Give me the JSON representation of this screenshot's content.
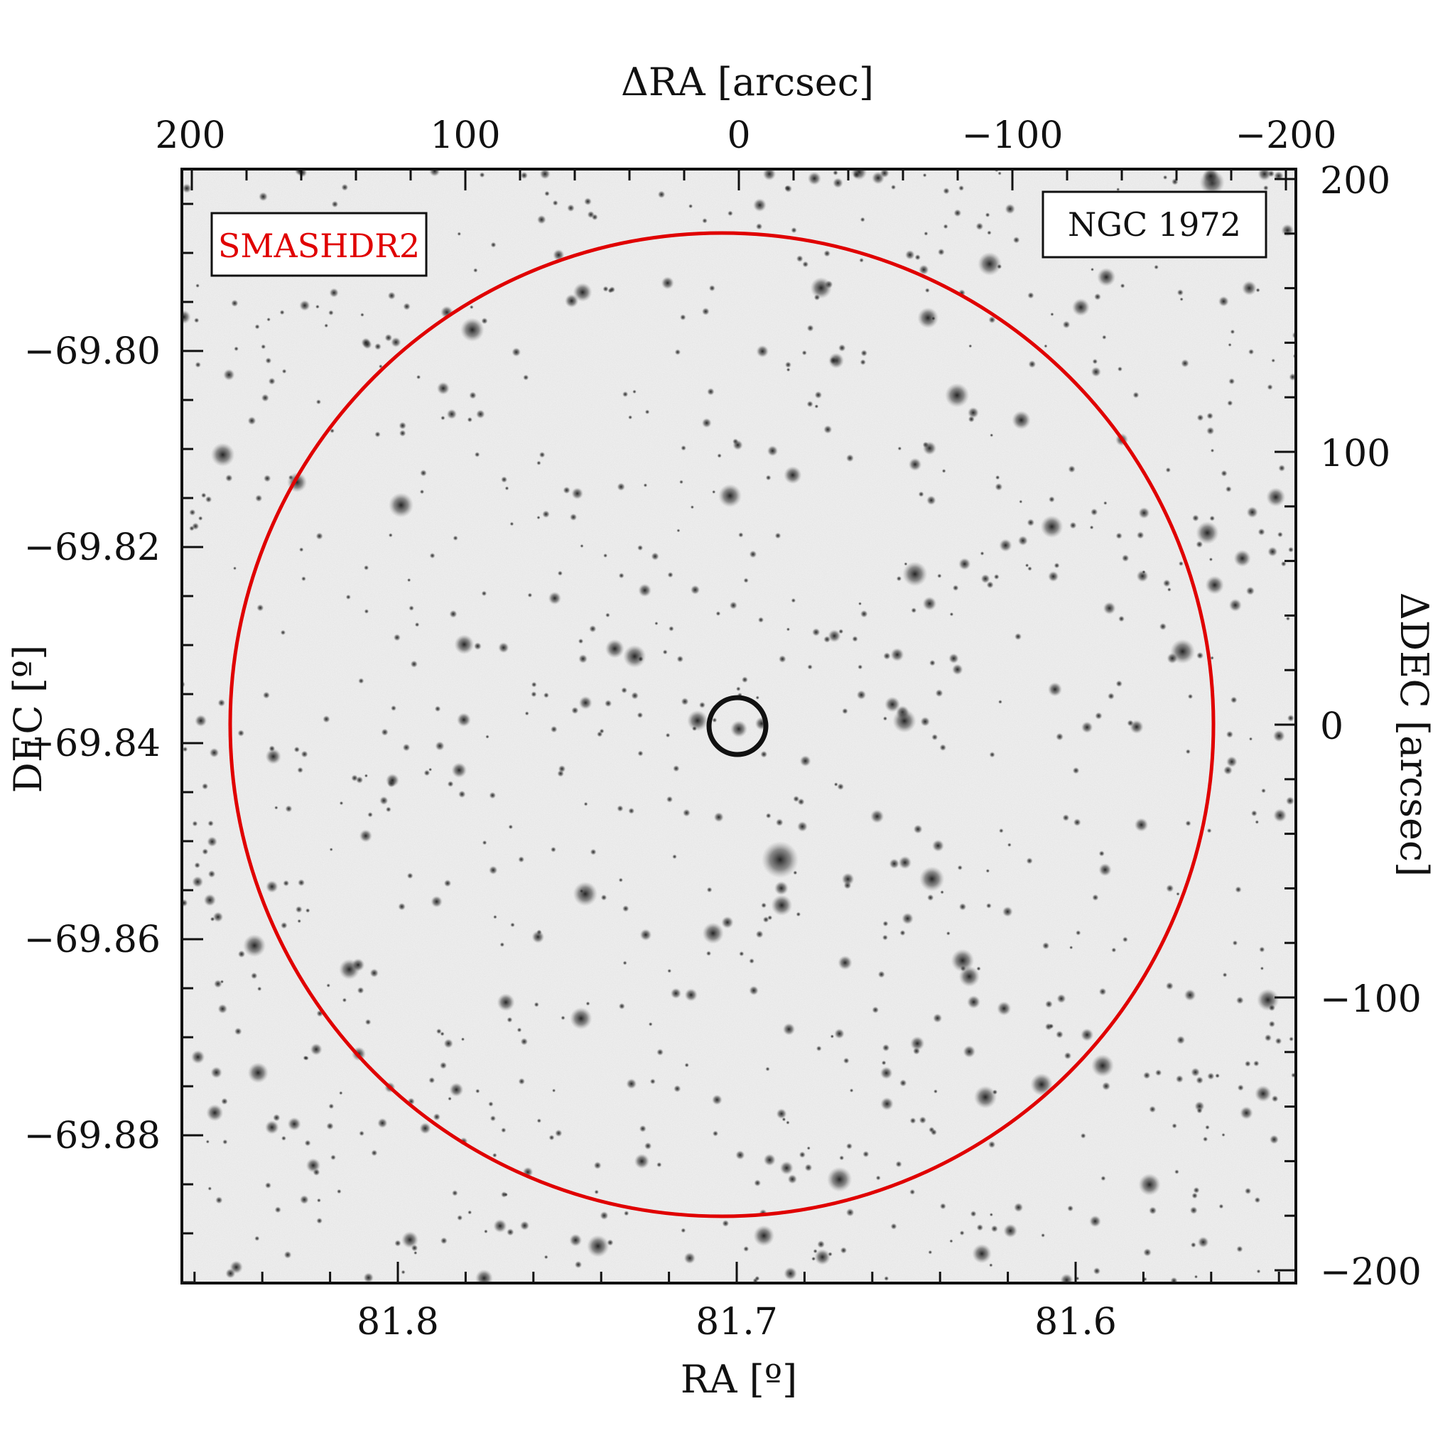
{
  "figure": {
    "top_axis": {
      "title": "ΔRA [arcsec]",
      "ticks": [
        {
          "value": 200,
          "label": "200"
        },
        {
          "value": 100,
          "label": "100"
        },
        {
          "value": 0,
          "label": "0"
        },
        {
          "value": -100,
          "label": "−100"
        },
        {
          "value": -200,
          "label": "−200"
        }
      ]
    },
    "right_axis": {
      "title": "ΔDEC [arcsec]",
      "ticks": [
        {
          "value": 200,
          "label": "200"
        },
        {
          "value": 100,
          "label": "100"
        },
        {
          "value": 0,
          "label": "0"
        },
        {
          "value": -100,
          "label": "−100"
        },
        {
          "value": -200,
          "label": "−200"
        }
      ]
    },
    "bottom_axis": {
      "title": "RA [º]",
      "ticks": [
        {
          "value": 81.8,
          "label": "81.8"
        },
        {
          "value": 81.7,
          "label": "81.7"
        },
        {
          "value": 81.6,
          "label": "81.6"
        }
      ]
    },
    "left_axis": {
      "title": "DEC [º]",
      "ticks": [
        {
          "value": -69.8,
          "label": "−69.80"
        },
        {
          "value": -69.82,
          "label": "−69.82"
        },
        {
          "value": -69.84,
          "label": "−69.84"
        },
        {
          "value": -69.86,
          "label": "−69.86"
        },
        {
          "value": -69.88,
          "label": "−69.88"
        }
      ]
    },
    "survey_label": {
      "text": "SMASHDR2",
      "color": "#e00000"
    },
    "object_label": {
      "text": "NGC 1972",
      "color": "#111111"
    },
    "large_circle": {
      "color": "#e00000"
    },
    "small_circle": {
      "color": "#111111"
    }
  }
}
